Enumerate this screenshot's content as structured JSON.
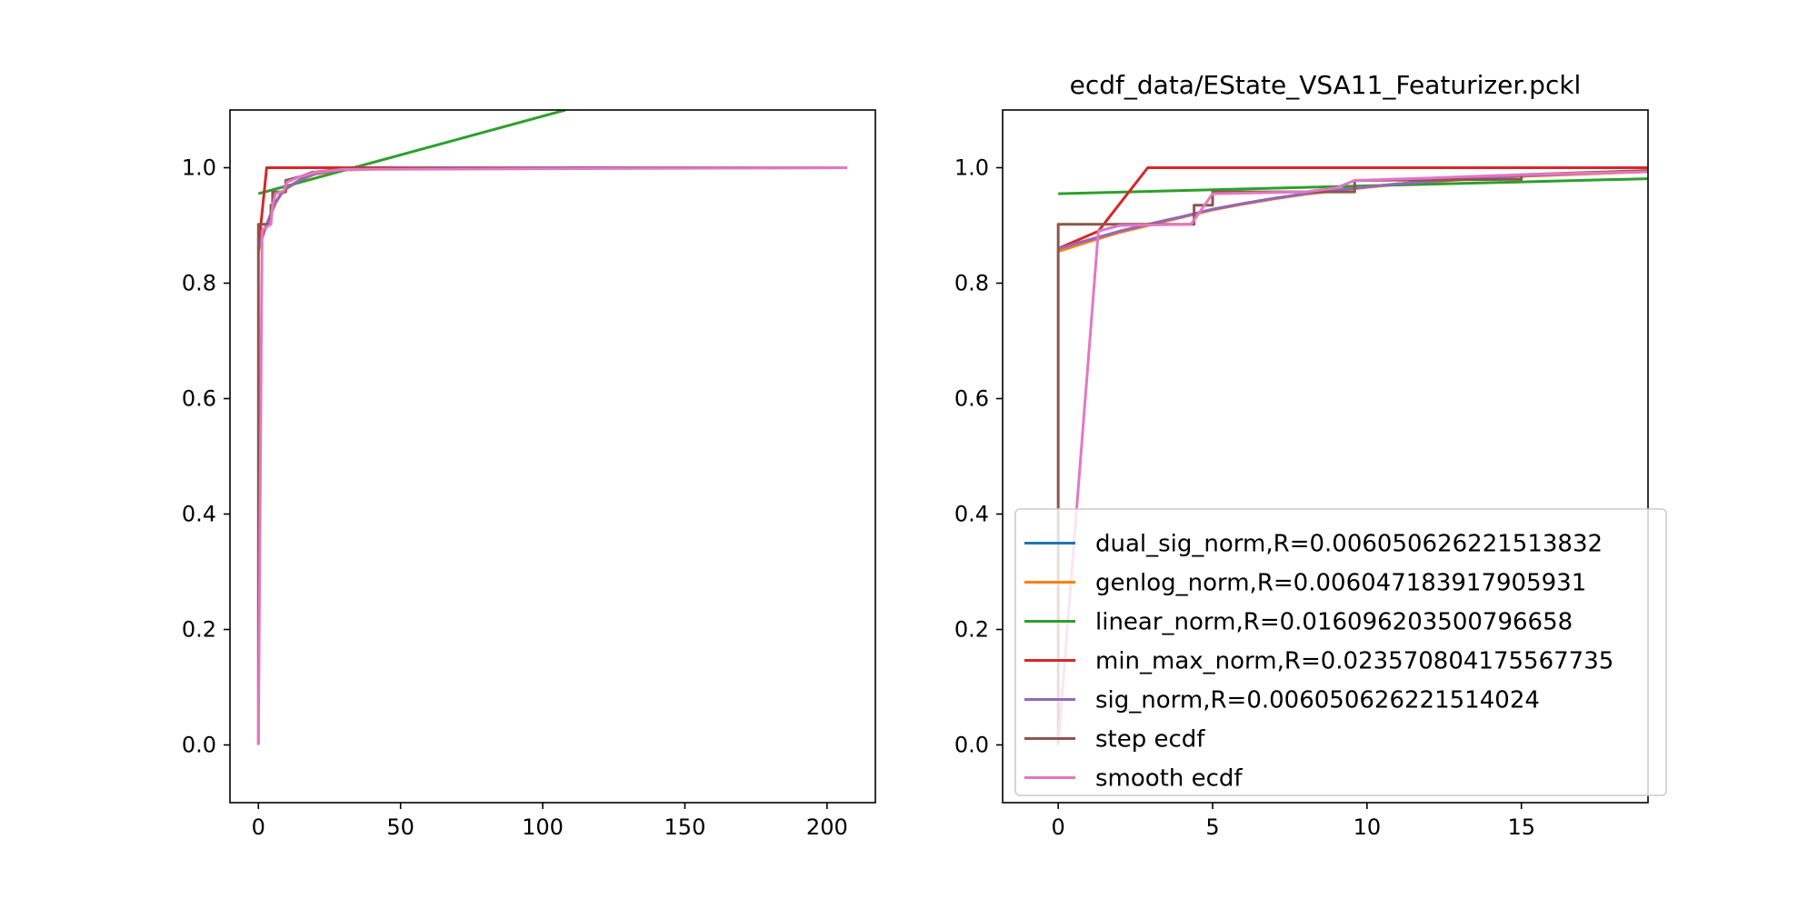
{
  "chart_data": [
    {
      "type": "line",
      "title": "",
      "xlabel": "",
      "ylabel": "",
      "xlim": [
        -10,
        217
      ],
      "ylim": [
        -0.1,
        1.1
      ],
      "x_ticks": [
        0,
        50,
        100,
        150,
        200
      ],
      "x_tick_labels": [
        "0",
        "50",
        "100",
        "150",
        "200"
      ],
      "y_ticks": [
        0.0,
        0.2,
        0.4,
        0.6,
        0.8,
        1.0
      ],
      "y_tick_labels": [
        "0.0",
        "0.2",
        "0.4",
        "0.6",
        "0.8",
        "1.0"
      ],
      "grid": false,
      "series": [
        {
          "key": "dual_sig_norm",
          "color": "#1f77b4",
          "points": [
            [
              0,
              0.86
            ],
            [
              1,
              0.875
            ],
            [
              2,
              0.89
            ],
            [
              4,
              0.915
            ],
            [
              6,
              0.94
            ],
            [
              8,
              0.955
            ],
            [
              10,
              0.965
            ],
            [
              15,
              0.98
            ],
            [
              20,
              0.99
            ],
            [
              30,
              0.997
            ],
            [
              50,
              0.999
            ],
            [
              100,
              1.0
            ],
            [
              207,
              1.0
            ]
          ]
        },
        {
          "key": "genlog_norm",
          "color": "#ff7f0e",
          "points": [
            [
              0,
              0.855
            ],
            [
              1,
              0.872
            ],
            [
              2,
              0.888
            ],
            [
              4,
              0.914
            ],
            [
              6,
              0.938
            ],
            [
              8,
              0.954
            ],
            [
              10,
              0.964
            ],
            [
              15,
              0.979
            ],
            [
              20,
              0.989
            ],
            [
              30,
              0.996
            ],
            [
              50,
              0.999
            ],
            [
              100,
              1.0
            ],
            [
              207,
              1.0
            ]
          ]
        },
        {
          "key": "linear_norm",
          "color": "#2ca02c",
          "points": [
            [
              0,
              0.955
            ],
            [
              108,
              1.1
            ]
          ]
        },
        {
          "key": "min_max_norm",
          "color": "#d62728",
          "points": [
            [
              0,
              0.86
            ],
            [
              2.9,
              1.0
            ],
            [
              207,
              1.0
            ]
          ]
        },
        {
          "key": "sig_norm",
          "color": "#9467bd",
          "points": [
            [
              0,
              0.86
            ],
            [
              1,
              0.875
            ],
            [
              2,
              0.89
            ],
            [
              4,
              0.915
            ],
            [
              6,
              0.94
            ],
            [
              8,
              0.955
            ],
            [
              10,
              0.965
            ],
            [
              15,
              0.98
            ],
            [
              20,
              0.99
            ],
            [
              30,
              0.997
            ],
            [
              50,
              0.999
            ],
            [
              100,
              1.0
            ],
            [
              207,
              1.0
            ]
          ]
        },
        {
          "key": "step_ecdf",
          "color": "#8c564b",
          "points": [
            [
              0,
              0.0
            ],
            [
              0,
              0.902
            ],
            [
              1.3,
              0.902
            ],
            [
              1.3,
              0.902
            ],
            [
              4.4,
              0.902
            ],
            [
              4.4,
              0.935
            ],
            [
              5,
              0.935
            ],
            [
              5,
              0.958
            ],
            [
              9.6,
              0.958
            ],
            [
              9.6,
              0.978
            ],
            [
              15,
              0.985
            ],
            [
              19,
              0.992
            ],
            [
              30,
              0.998
            ],
            [
              207,
              1.0
            ]
          ]
        },
        {
          "key": "smooth_ecdf",
          "color": "#e377c2",
          "points": [
            [
              0,
              0.0
            ],
            [
              1.3,
              0.89
            ],
            [
              2,
              0.895
            ],
            [
              4.4,
              0.902
            ],
            [
              5,
              0.935
            ],
            [
              6,
              0.955
            ],
            [
              9,
              0.96
            ],
            [
              10,
              0.975
            ],
            [
              15,
              0.985
            ],
            [
              20,
              0.992
            ],
            [
              30,
              0.997
            ],
            [
              207,
              1.0
            ]
          ]
        }
      ]
    },
    {
      "type": "line",
      "title": "ecdf_data/EState_VSA11_Featurizer.pckl",
      "xlabel": "",
      "ylabel": "",
      "xlim": [
        -1.8,
        19.1
      ],
      "ylim": [
        -0.1,
        1.1
      ],
      "x_ticks": [
        0,
        5,
        10,
        15
      ],
      "x_tick_labels": [
        "0",
        "5",
        "10",
        "15"
      ],
      "y_ticks": [
        0.0,
        0.2,
        0.4,
        0.6,
        0.8,
        1.0
      ],
      "y_tick_labels": [
        "0.0",
        "0.2",
        "0.4",
        "0.6",
        "0.8",
        "1.0"
      ],
      "grid": false,
      "legend_position": "lower-right",
      "legend": [
        {
          "label": "dual_sig_norm,R=0.006050626221513832",
          "color": "#1f77b4"
        },
        {
          "label": "genlog_norm,R=0.006047183917905931",
          "color": "#ff7f0e"
        },
        {
          "label": "linear_norm,R=0.016096203500796658",
          "color": "#2ca02c"
        },
        {
          "label": "min_max_norm,R=0.023570804175567735",
          "color": "#d62728"
        },
        {
          "label": "sig_norm,R=0.006050626221514024",
          "color": "#9467bd"
        },
        {
          "label": "step ecdf",
          "color": "#8c564b"
        },
        {
          "label": "smooth ecdf",
          "color": "#e377c2"
        }
      ],
      "series": [
        {
          "key": "dual_sig_norm",
          "color": "#1f77b4",
          "points": [
            [
              0,
              0.86
            ],
            [
              1,
              0.875
            ],
            [
              2,
              0.89
            ],
            [
              3,
              0.903
            ],
            [
              4,
              0.915
            ],
            [
              5,
              0.928
            ],
            [
              6,
              0.938
            ],
            [
              7,
              0.947
            ],
            [
              8,
              0.955
            ],
            [
              9,
              0.961
            ],
            [
              10,
              0.967
            ],
            [
              11,
              0.972
            ],
            [
              12,
              0.976
            ],
            [
              13,
              0.98
            ],
            [
              14,
              0.983
            ],
            [
              15,
              0.986
            ],
            [
              16,
              0.988
            ],
            [
              17,
              0.99
            ],
            [
              18,
              0.992
            ],
            [
              19.1,
              0.994
            ]
          ]
        },
        {
          "key": "genlog_norm",
          "color": "#ff7f0e",
          "points": [
            [
              0,
              0.855
            ],
            [
              1,
              0.872
            ],
            [
              2,
              0.888
            ],
            [
              3,
              0.901
            ],
            [
              4,
              0.914
            ],
            [
              5,
              0.927
            ],
            [
              6,
              0.937
            ],
            [
              7,
              0.946
            ],
            [
              8,
              0.954
            ],
            [
              9,
              0.96
            ],
            [
              10,
              0.966
            ],
            [
              11,
              0.971
            ],
            [
              12,
              0.975
            ],
            [
              13,
              0.979
            ],
            [
              14,
              0.982
            ],
            [
              15,
              0.985
            ],
            [
              16,
              0.987
            ],
            [
              17,
              0.989
            ],
            [
              18,
              0.991
            ],
            [
              19.1,
              0.993
            ]
          ]
        },
        {
          "key": "linear_norm",
          "color": "#2ca02c",
          "points": [
            [
              0,
              0.955
            ],
            [
              19.1,
              0.981
            ]
          ]
        },
        {
          "key": "min_max_norm",
          "color": "#d62728",
          "points": [
            [
              0,
              0.86
            ],
            [
              1.3,
              0.89
            ],
            [
              2.9,
              1.0
            ],
            [
              19.1,
              1.0
            ]
          ]
        },
        {
          "key": "sig_norm",
          "color": "#9467bd",
          "points": [
            [
              0,
              0.86
            ],
            [
              1,
              0.875
            ],
            [
              2,
              0.89
            ],
            [
              3,
              0.903
            ],
            [
              4,
              0.915
            ],
            [
              5,
              0.928
            ],
            [
              6,
              0.938
            ],
            [
              7,
              0.947
            ],
            [
              8,
              0.955
            ],
            [
              9,
              0.961
            ],
            [
              10,
              0.967
            ],
            [
              11,
              0.972
            ],
            [
              12,
              0.976
            ],
            [
              13,
              0.98
            ],
            [
              14,
              0.983
            ],
            [
              15,
              0.986
            ],
            [
              16,
              0.988
            ],
            [
              17,
              0.99
            ],
            [
              18,
              0.992
            ],
            [
              19.1,
              0.994
            ]
          ]
        },
        {
          "key": "step_ecdf",
          "color": "#8c564b",
          "points": [
            [
              0,
              0.0
            ],
            [
              0,
              0.902
            ],
            [
              1.3,
              0.902
            ],
            [
              4.4,
              0.902
            ],
            [
              4.4,
              0.935
            ],
            [
              5,
              0.935
            ],
            [
              5,
              0.958
            ],
            [
              9.6,
              0.958
            ],
            [
              9.6,
              0.978
            ],
            [
              15,
              0.98
            ],
            [
              15,
              0.988
            ],
            [
              19.1,
              0.995
            ]
          ]
        },
        {
          "key": "smooth_ecdf",
          "color": "#e377c2",
          "points": [
            [
              0,
              0.0
            ],
            [
              1.3,
              0.89
            ],
            [
              2,
              0.9
            ],
            [
              4.3,
              0.902
            ],
            [
              5,
              0.955
            ],
            [
              8,
              0.958
            ],
            [
              9,
              0.965
            ],
            [
              9.6,
              0.978
            ],
            [
              12,
              0.982
            ],
            [
              15,
              0.988
            ],
            [
              19.1,
              0.993
            ]
          ]
        }
      ]
    }
  ]
}
